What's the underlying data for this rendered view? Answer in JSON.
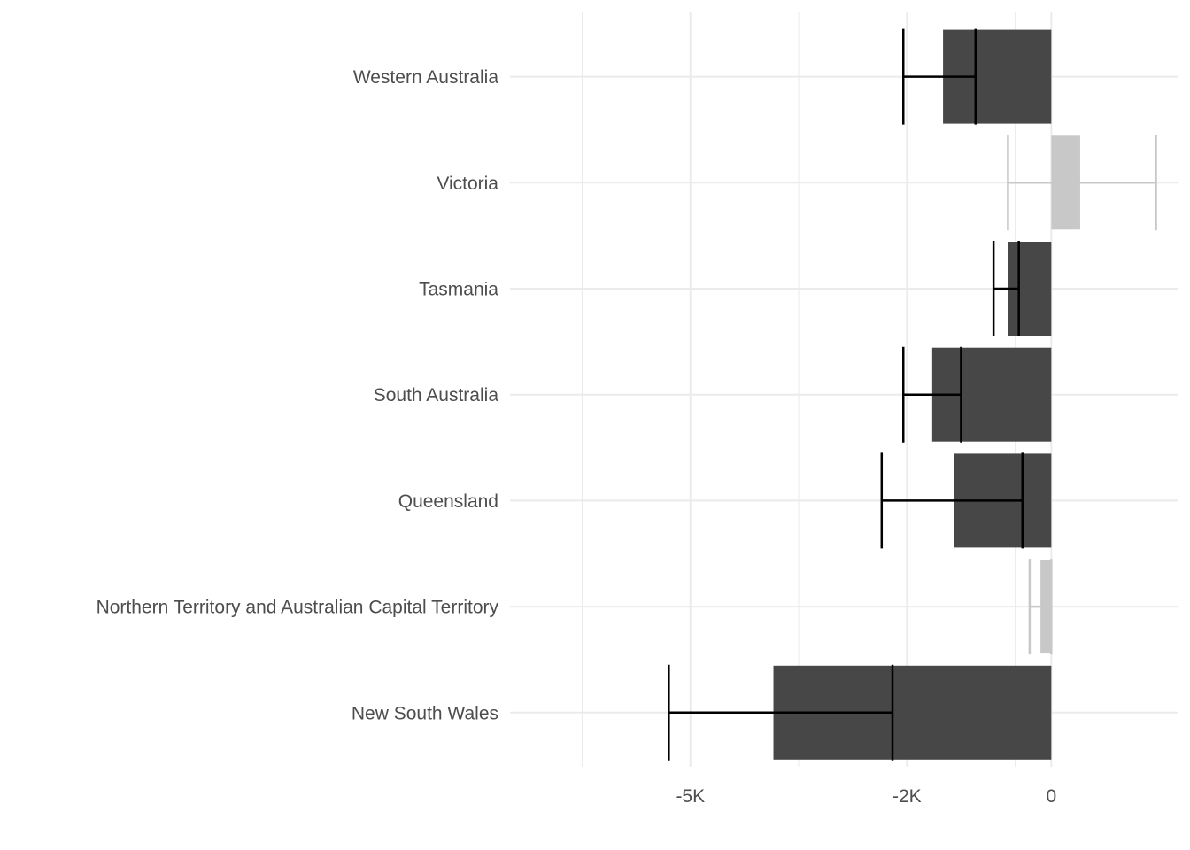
{
  "chart_data": {
    "type": "bar",
    "orientation": "horizontal",
    "title": "",
    "xlabel": "",
    "ylabel": "",
    "xlim": [
      -7500,
      1750
    ],
    "grid": true,
    "legend": "none",
    "x_ticks": [
      {
        "value": -5000,
        "label": "-5K"
      },
      {
        "value": -2000,
        "label": "-2K"
      },
      {
        "value": 0,
        "label": "0"
      }
    ],
    "categories": [
      "Western Australia",
      "Victoria",
      "Tasmania",
      "South Australia",
      "Queensland",
      "Northern Territory and Australian Capital Territory",
      "New South Wales"
    ],
    "values": [
      -1500,
      400,
      -600,
      -1650,
      -1350,
      -150,
      -3850
    ],
    "error_low": [
      -2050,
      -600,
      -800,
      -2050,
      -2350,
      -300,
      -5300
    ],
    "error_high": [
      -1050,
      1450,
      -450,
      -1250,
      -400,
      0,
      -2200
    ],
    "significant": [
      true,
      false,
      true,
      true,
      true,
      false,
      true
    ],
    "colors": {
      "significant": "#474747",
      "not_significant": "#c8c8c8",
      "error_significant": "#000000",
      "error_not_significant": "#c8c8c8",
      "grid": "#ebebeb"
    }
  }
}
